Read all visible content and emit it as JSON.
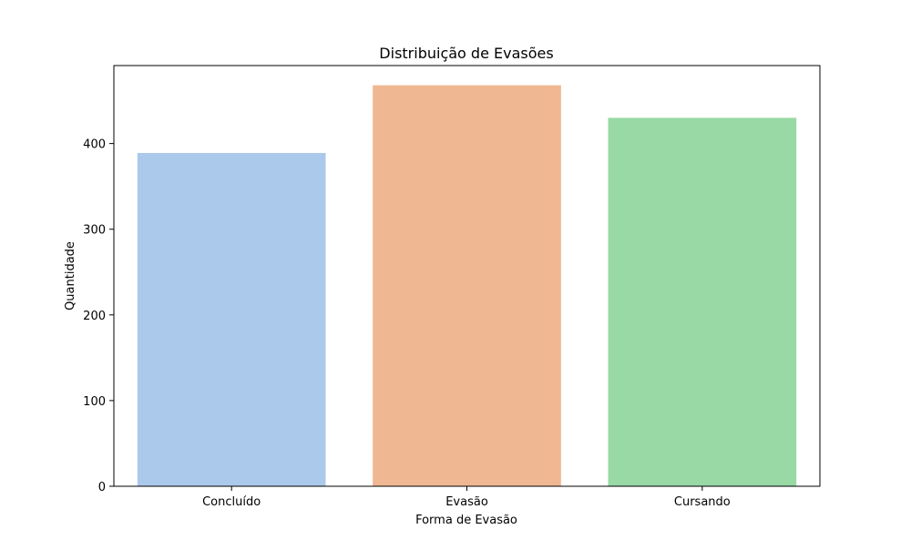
{
  "chart_data": {
    "type": "bar",
    "title": "Distribuição de Evasões",
    "xlabel": "Forma de Evasão",
    "ylabel": "Quantidade",
    "categories": [
      "Concluído",
      "Evasão",
      "Cursando"
    ],
    "values": [
      389,
      468,
      430
    ],
    "colors": [
      "#abc9ea",
      "#efb792",
      "#98d9a5"
    ],
    "ylim": [
      0,
      491
    ],
    "yticks": [
      0,
      100,
      200,
      300,
      400
    ],
    "grid": false,
    "legend": "none"
  }
}
